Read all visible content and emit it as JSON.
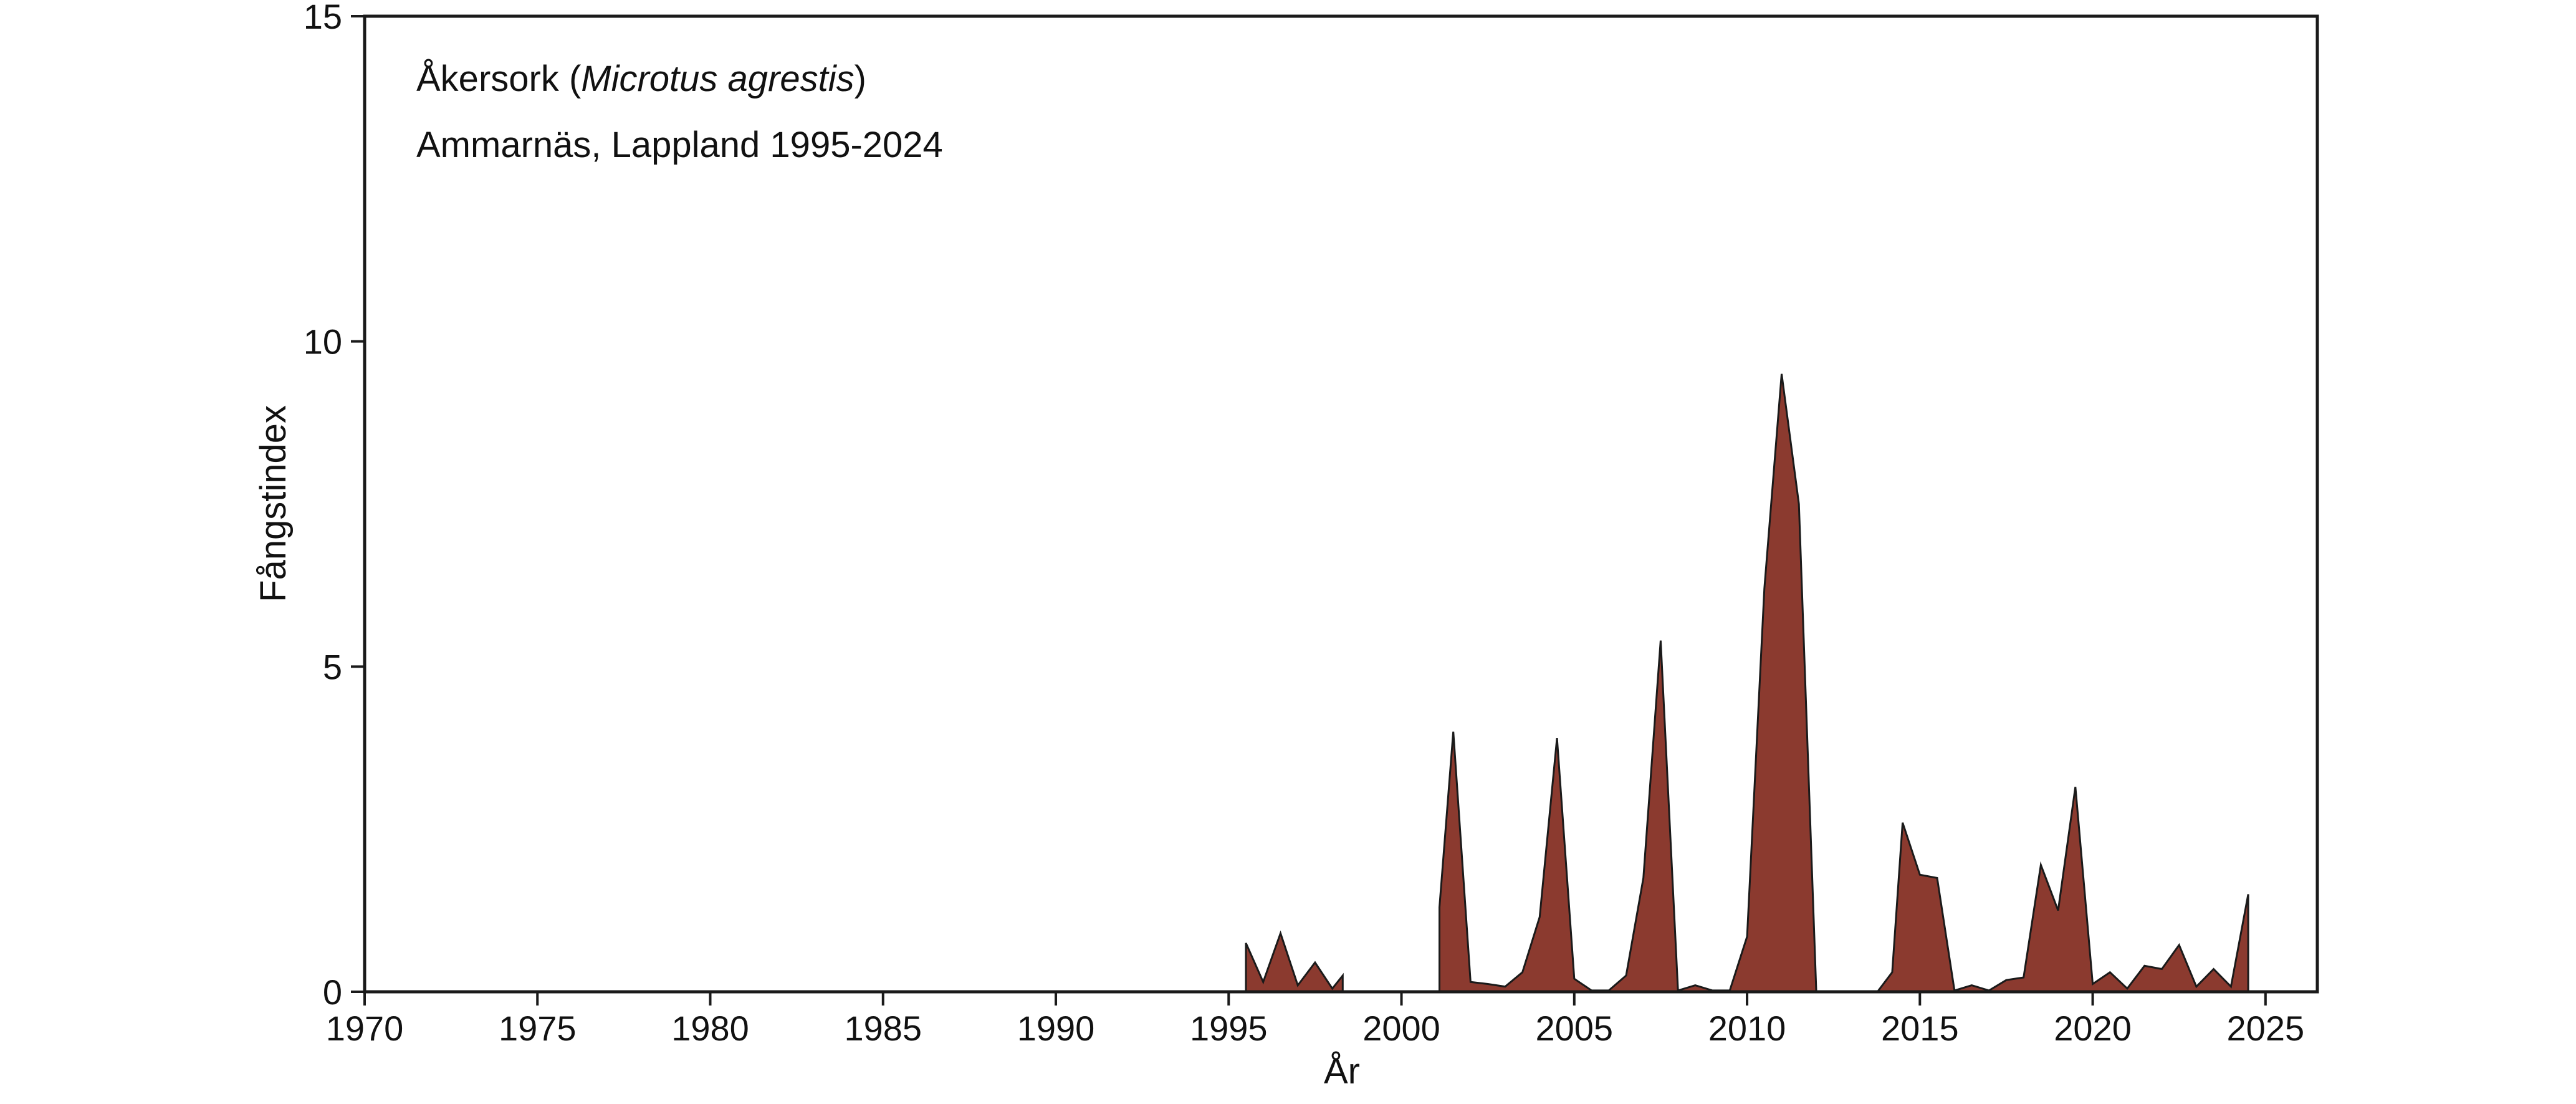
{
  "chart_data": {
    "type": "area",
    "title_parts": {
      "prefix": "Åkersork (",
      "italic": "Microtus agrestis",
      "suffix": ")"
    },
    "subtitle": "Ammarnäs, Lappland 1995-2024",
    "xlabel": "År",
    "ylabel": "Fångstindex",
    "xlim": [
      1970,
      2026.5
    ],
    "ylim": [
      0,
      15
    ],
    "xticks": [
      1970,
      1975,
      1980,
      1985,
      1990,
      1995,
      2000,
      2005,
      2010,
      2015,
      2020,
      2025
    ],
    "yticks": [
      0,
      5,
      10,
      15
    ],
    "grid": false,
    "legend": "none",
    "colors": {
      "fill": "#8b3a2f",
      "line": "#1a1a1a",
      "axis": "#1a1a1a"
    },
    "segments": [
      [
        {
          "x": 1995.5,
          "y": 0.75
        },
        {
          "x": 1996.0,
          "y": 0.15
        },
        {
          "x": 1996.5,
          "y": 0.9
        },
        {
          "x": 1997.0,
          "y": 0.1
        },
        {
          "x": 1997.5,
          "y": 0.45
        },
        {
          "x": 1998.0,
          "y": 0.05
        },
        {
          "x": 1998.3,
          "y": 0.25
        }
      ],
      [
        {
          "x": 2001.1,
          "y": 1.3
        },
        {
          "x": 2001.5,
          "y": 4.0
        },
        {
          "x": 2002.0,
          "y": 0.15
        },
        {
          "x": 2002.5,
          "y": 0.12
        },
        {
          "x": 2003.0,
          "y": 0.08
        },
        {
          "x": 2003.5,
          "y": 0.3
        },
        {
          "x": 2004.0,
          "y": 1.15
        },
        {
          "x": 2004.5,
          "y": 3.9
        },
        {
          "x": 2005.0,
          "y": 0.2
        },
        {
          "x": 2005.5,
          "y": 0.02
        },
        {
          "x": 2006.0,
          "y": 0.02
        },
        {
          "x": 2006.5,
          "y": 0.25
        },
        {
          "x": 2007.0,
          "y": 1.75
        },
        {
          "x": 2007.5,
          "y": 5.4
        },
        {
          "x": 2008.0,
          "y": 0.02
        },
        {
          "x": 2008.5,
          "y": 0.1
        },
        {
          "x": 2009.0,
          "y": 0.02
        },
        {
          "x": 2009.5,
          "y": 0.02
        },
        {
          "x": 2010.0,
          "y": 0.85
        },
        {
          "x": 2010.5,
          "y": 6.2
        },
        {
          "x": 2011.0,
          "y": 9.5
        },
        {
          "x": 2011.5,
          "y": 7.5
        },
        {
          "x": 2012.0,
          "y": 0.02
        }
      ],
      [
        {
          "x": 2013.8,
          "y": 0.02
        },
        {
          "x": 2014.2,
          "y": 0.3
        },
        {
          "x": 2014.5,
          "y": 2.6
        },
        {
          "x": 2015.0,
          "y": 1.8
        },
        {
          "x": 2015.5,
          "y": 1.75
        },
        {
          "x": 2016.0,
          "y": 0.02
        },
        {
          "x": 2016.5,
          "y": 0.1
        },
        {
          "x": 2017.0,
          "y": 0.02
        },
        {
          "x": 2017.5,
          "y": 0.18
        },
        {
          "x": 2018.0,
          "y": 0.22
        },
        {
          "x": 2018.5,
          "y": 1.95
        },
        {
          "x": 2019.0,
          "y": 1.25
        },
        {
          "x": 2019.5,
          "y": 3.15
        },
        {
          "x": 2020.0,
          "y": 0.12
        },
        {
          "x": 2020.5,
          "y": 0.3
        },
        {
          "x": 2021.0,
          "y": 0.05
        },
        {
          "x": 2021.5,
          "y": 0.4
        },
        {
          "x": 2022.0,
          "y": 0.35
        },
        {
          "x": 2022.5,
          "y": 0.72
        },
        {
          "x": 2023.0,
          "y": 0.08
        },
        {
          "x": 2023.5,
          "y": 0.35
        },
        {
          "x": 2024.0,
          "y": 0.08
        },
        {
          "x": 2024.5,
          "y": 1.5
        }
      ]
    ]
  }
}
